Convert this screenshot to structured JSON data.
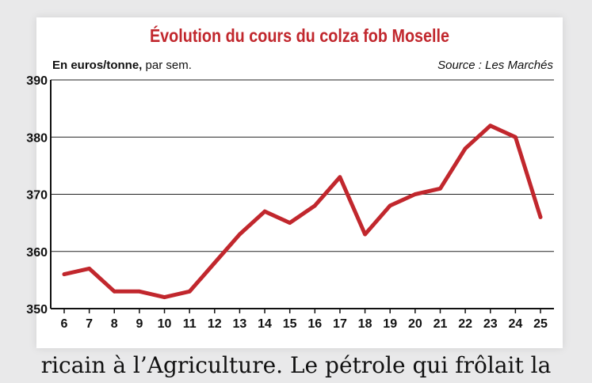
{
  "chart_data": {
    "type": "line",
    "title": "Évolution du cours du colza fob Moselle",
    "unit_label": "En euros/tonne,",
    "period_label": "par sem.",
    "source": "Source : Les Marchés",
    "x": [
      "6",
      "7",
      "8",
      "9",
      "10",
      "11",
      "12",
      "13",
      "14",
      "15",
      "16",
      "17",
      "18",
      "19",
      "20",
      "21",
      "22",
      "23",
      "24",
      "25"
    ],
    "series": [
      {
        "values": [
          356,
          357,
          353,
          353,
          352,
          353,
          358,
          363,
          367,
          365,
          368,
          373,
          363,
          368,
          370,
          371,
          378,
          382,
          380,
          366
        ]
      }
    ],
    "ylim": [
      350,
      390
    ],
    "yticks": [
      350,
      360,
      370,
      380,
      390
    ],
    "grid": true,
    "line_color": "#c1272d"
  },
  "footer_text": "ricain à l’Agriculture. Le pétrole qui frôlait la"
}
